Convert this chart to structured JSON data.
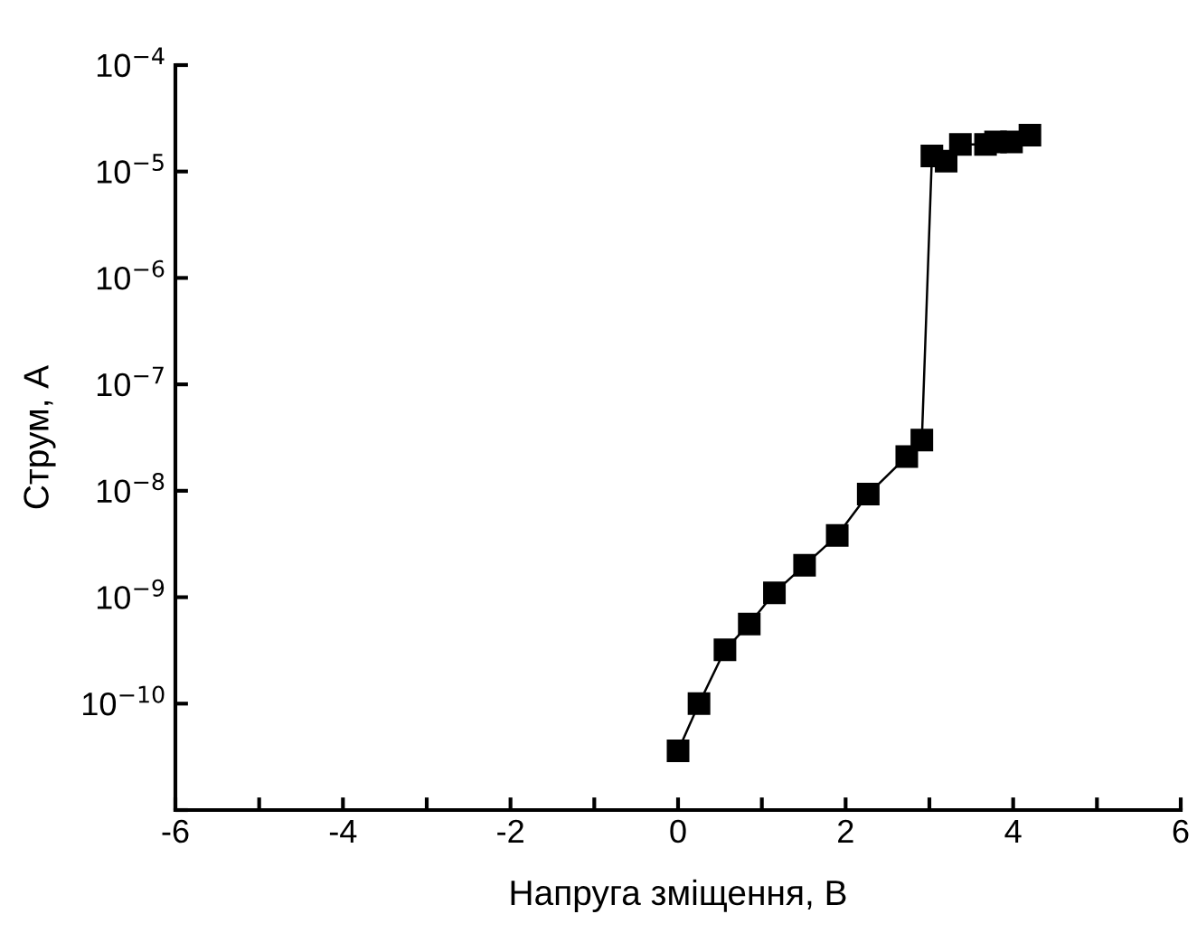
{
  "chart_data": {
    "type": "line",
    "xlabel": "Напруга зміщення, В",
    "ylabel": "Струм, А",
    "log": "y",
    "marker": "square",
    "line_style": "solid",
    "grid": false,
    "legend": false,
    "xlim": [
      -6,
      6
    ],
    "xticks": [
      -6,
      {
        "value": -5,
        "label": null
      },
      -4,
      {
        "value": -3,
        "label": null
      },
      -2,
      {
        "value": -1,
        "label": null
      },
      0,
      {
        "value": 1,
        "label": null
      },
      2,
      {
        "value": 3,
        "label": null
      },
      4,
      {
        "value": 5,
        "label": null
      },
      6
    ],
    "ylim": [
      1e-11,
      0.0001
    ],
    "yticks": [
      {
        "value": 1e-11,
        "label": null
      },
      {
        "value": 1e-10,
        "label": "10$^{−10}$"
      },
      {
        "value": 1e-09,
        "label": "10$^{−9}$"
      },
      {
        "value": 1e-08,
        "label": "10$^{−8}$"
      },
      {
        "value": 1e-07,
        "label": "10$^{−7}$"
      },
      {
        "value": 1e-06,
        "label": "10$^{−6}$"
      },
      {
        "value": 1e-05,
        "label": "10$^{−5}$"
      },
      {
        "value": 0.0001,
        "label": "10$^{−4}$"
      }
    ],
    "x": [
      0,
      0.25,
      0.56,
      0.85,
      1.15,
      1.51,
      1.9,
      2.27,
      2.73,
      2.91,
      3.03,
      3.2,
      3.37,
      3.67,
      3.79,
      3.98,
      4.2
    ],
    "series": [
      {
        "color": "#000000",
        "values": [
          3.6e-11,
          1e-10,
          3.2e-10,
          5.6e-10,
          1.1e-09,
          2e-09,
          3.8e-09,
          9.3e-09,
          2.1e-08,
          3e-08,
          1.4e-05,
          1.25e-05,
          1.8e-05,
          1.8e-05,
          1.9e-05,
          1.9e-05,
          2.2e-05
        ]
      }
    ]
  }
}
